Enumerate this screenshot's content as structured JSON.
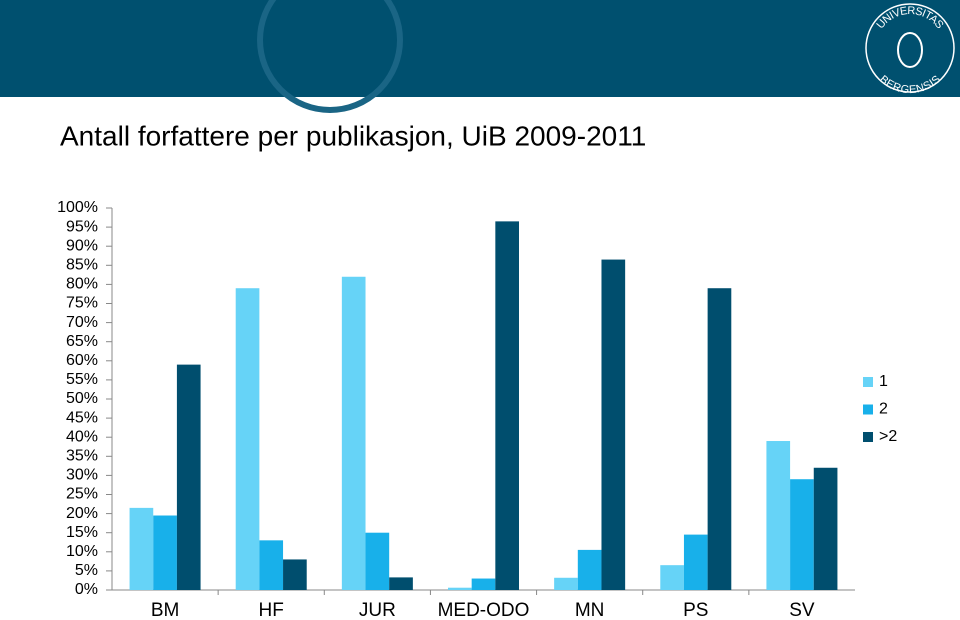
{
  "logo": {
    "top": "UNIVERSITAS",
    "bottom": "BERGENSIS"
  },
  "chart_data": {
    "type": "bar",
    "title": "Antall forfattere per publikasjon, UiB 2009-2011",
    "categories": [
      "BM",
      "HF",
      "JUR",
      "MED-ODO",
      "MN",
      "PS",
      "SV"
    ],
    "series": [
      {
        "name": "1",
        "color": "#66d3f7",
        "values": [
          21.5,
          79,
          82,
          0.6,
          3.2,
          6.5,
          39
        ]
      },
      {
        "name": "2",
        "color": "#18b0ea",
        "values": [
          19.5,
          13,
          15,
          3,
          10.5,
          14.5,
          29
        ]
      },
      {
        "name": ">2",
        "color": "#004e6e",
        "values": [
          59,
          8,
          3.3,
          96.5,
          86.5,
          79,
          32
        ]
      }
    ],
    "ylim": [
      0,
      100
    ],
    "yticks": [
      {
        "value": 0,
        "label": "0%"
      },
      {
        "value": 5,
        "label": "5%"
      },
      {
        "value": 10,
        "label": "10%"
      },
      {
        "value": 15,
        "label": "15%"
      },
      {
        "value": 20,
        "label": "20%"
      },
      {
        "value": 25,
        "label": "25%"
      },
      {
        "value": 30,
        "label": "30%"
      },
      {
        "value": 35,
        "label": "35%"
      },
      {
        "value": 40,
        "label": "40%"
      },
      {
        "value": 45,
        "label": "45%"
      },
      {
        "value": 50,
        "label": "50%"
      },
      {
        "value": 55,
        "label": "55%"
      },
      {
        "value": 60,
        "label": "60%"
      },
      {
        "value": 65,
        "label": "65%"
      },
      {
        "value": 70,
        "label": "70%"
      },
      {
        "value": 75,
        "label": "75%"
      },
      {
        "value": 80,
        "label": "80%"
      },
      {
        "value": 85,
        "label": "85%"
      },
      {
        "value": 90,
        "label": "90%"
      },
      {
        "value": 95,
        "label": "95%"
      },
      {
        "value": 100,
        "label": "100%"
      }
    ],
    "grid": false,
    "legend": "right"
  }
}
